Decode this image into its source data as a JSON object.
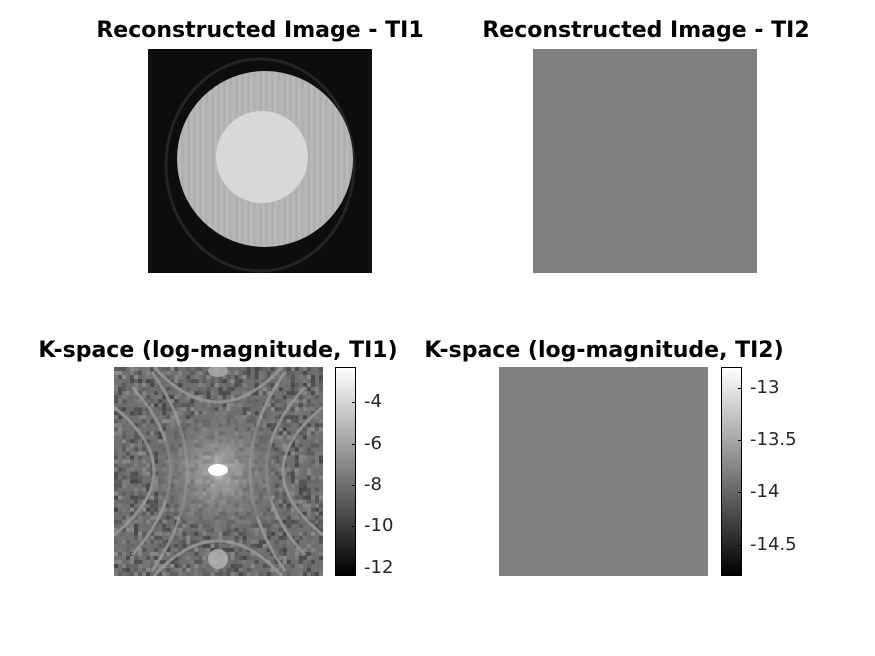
{
  "chart_data": [
    {
      "type": "heatmap",
      "title": "Reconstructed Image - TI1",
      "colormap": "gray",
      "grid": false,
      "content": "disc phantom with brighter inner disc"
    },
    {
      "type": "heatmap",
      "title": "Reconstructed Image - TI2",
      "colormap": "gray",
      "grid": false,
      "uniform_value": 0.5
    },
    {
      "type": "heatmap",
      "title": "K-space (log-magnitude, TI1)",
      "colormap": "gray",
      "grid": false,
      "colorbar": {
        "ticks": [
          "-4",
          "-6",
          "-8",
          "-10",
          "-12"
        ],
        "range": [
          -12.4,
          -2.3
        ]
      }
    },
    {
      "type": "heatmap",
      "title": "K-space (log-magnitude, TI2)",
      "colormap": "gray",
      "grid": false,
      "uniform_value": 0.5,
      "colorbar": {
        "ticks": [
          "-13",
          "-13.5",
          "-14",
          "-14.5"
        ],
        "range": [
          -14.8,
          -12.8
        ]
      }
    }
  ]
}
